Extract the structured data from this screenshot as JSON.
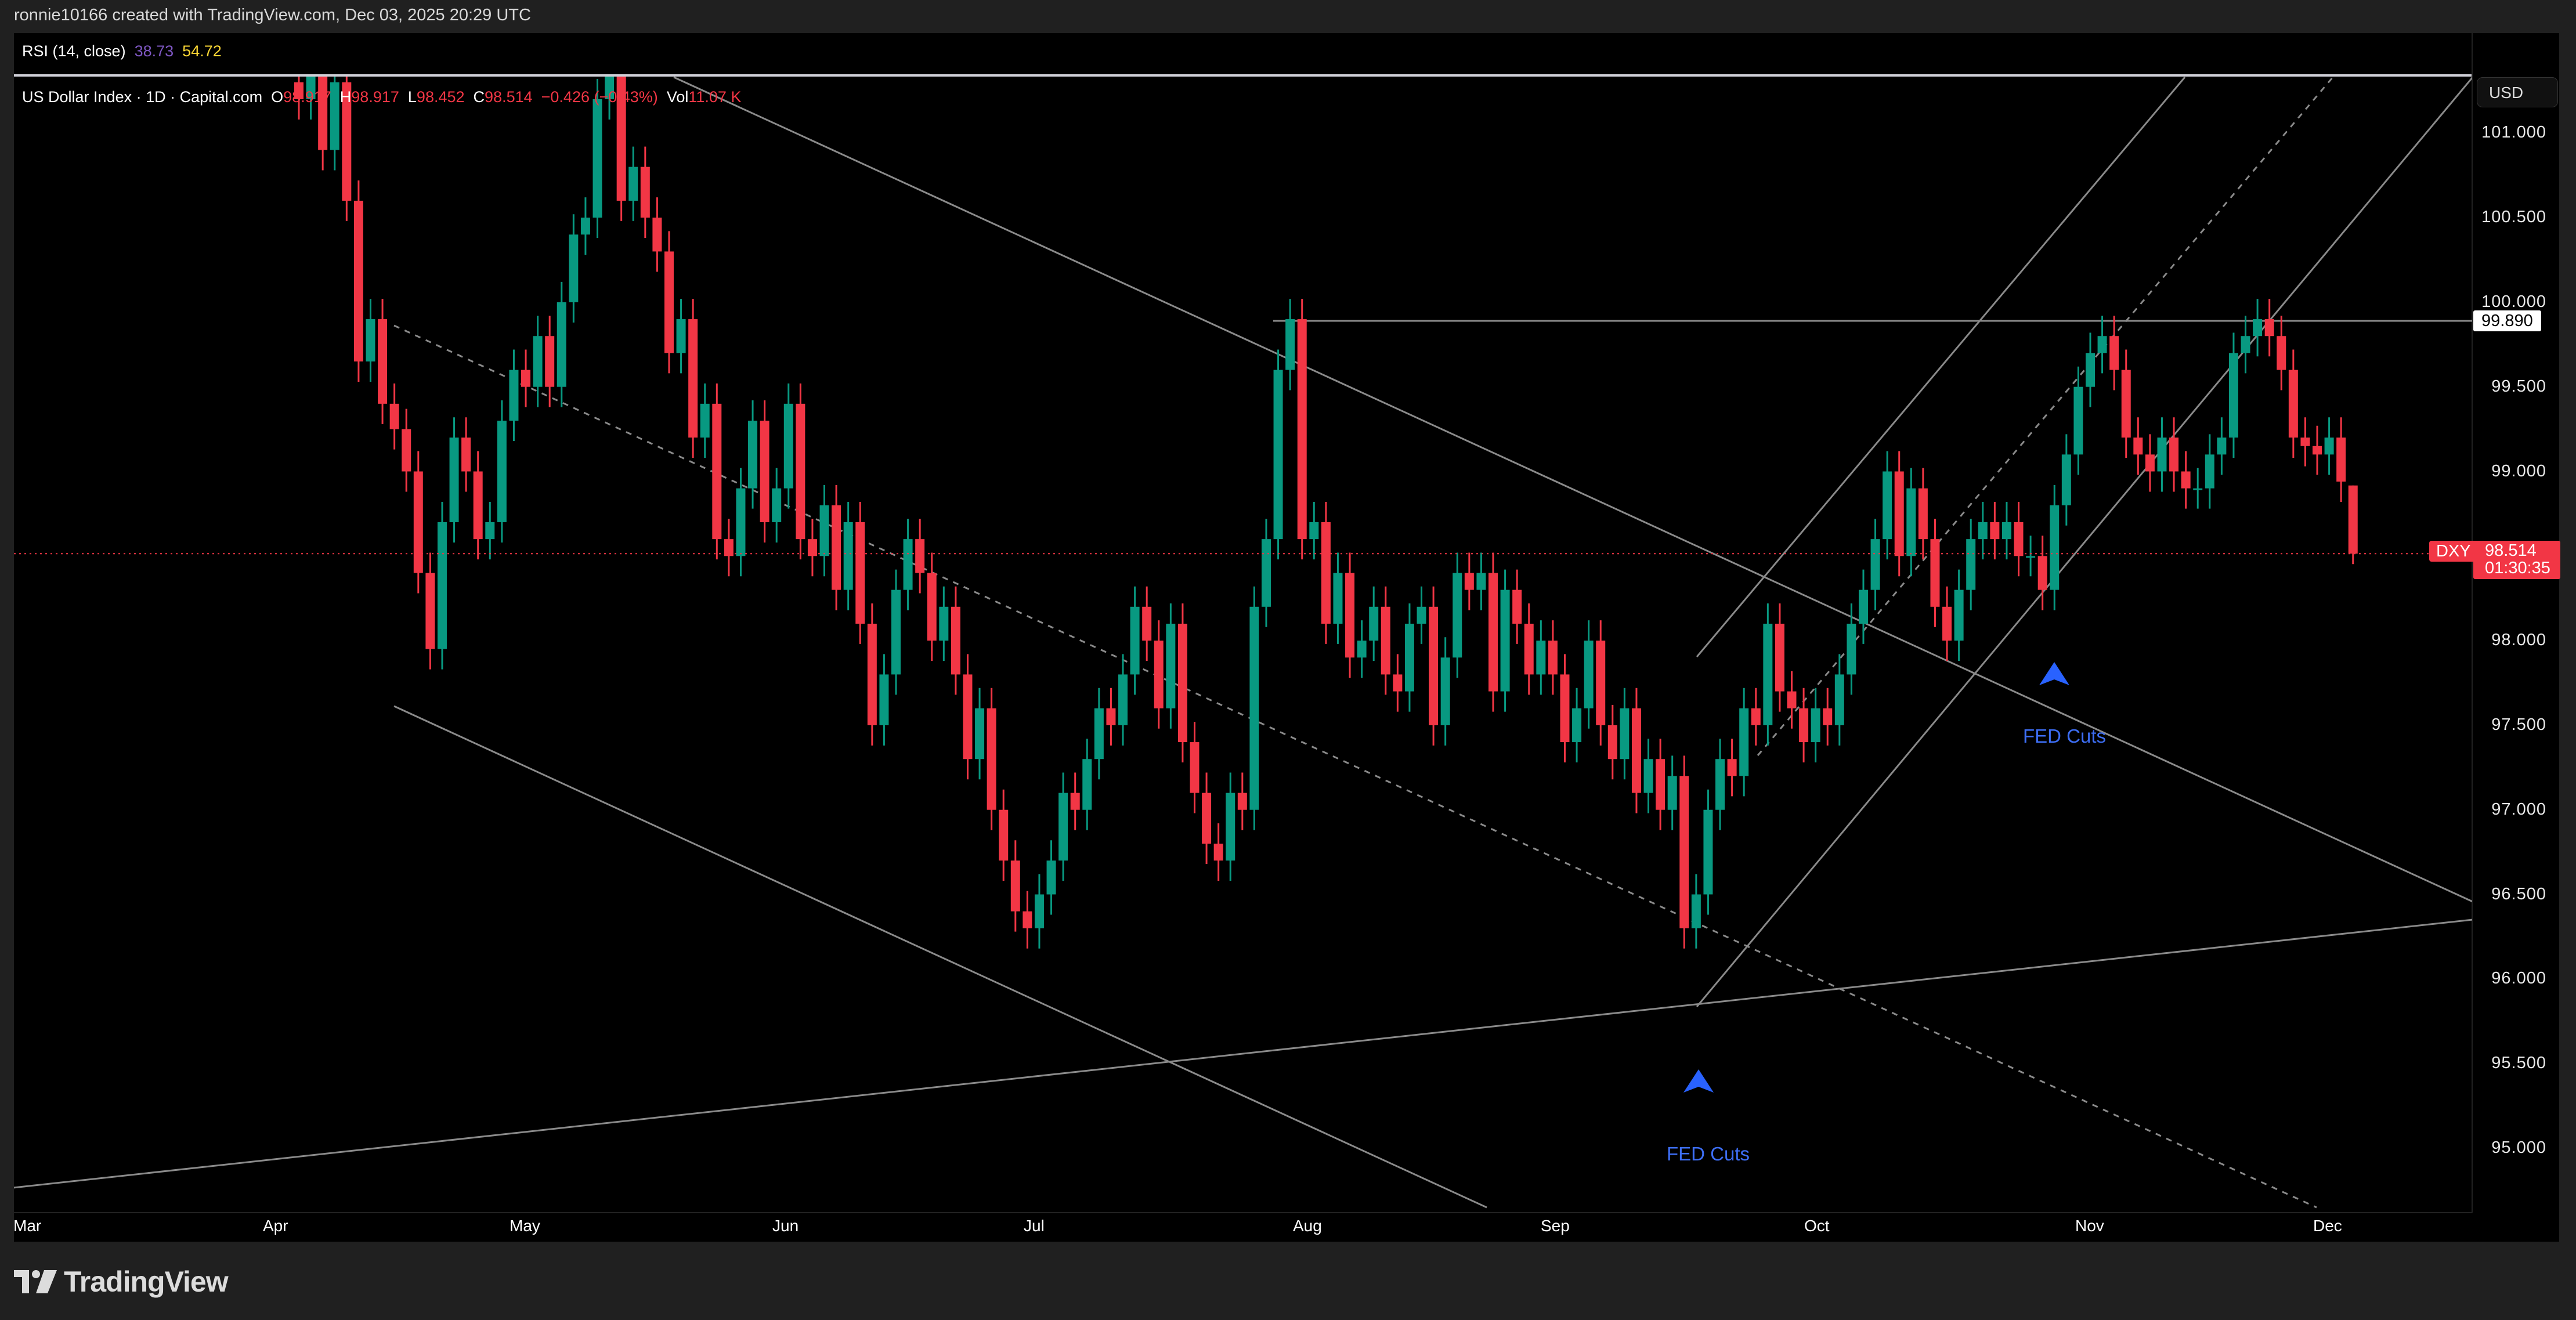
{
  "header": {
    "attribution": "ronnie10166 created with TradingView.com, Dec 03, 2025 20:29 UTC"
  },
  "rsi": {
    "label": "RSI (14, close)",
    "value1": "38.73",
    "value2": "54.72"
  },
  "legend": {
    "symbol": "US Dollar Index · 1D · Capital.com",
    "o_label": "O",
    "o": "98.917",
    "h_label": "H",
    "h": "98.917",
    "l_label": "L",
    "l": "98.452",
    "c_label": "C",
    "c": "98.514",
    "change": "−0.426 (−0.43%)",
    "vol_label": "Vol",
    "vol": "11.07 K"
  },
  "price_axis": {
    "currency": "USD",
    "ticks": [
      "101.000",
      "100.500",
      "100.000",
      "99.500",
      "99.000",
      "98.500",
      "98.000",
      "97.500",
      "97.000",
      "96.500",
      "96.000",
      "95.500",
      "95.000"
    ],
    "level_label": "99.890",
    "symbol_tag": "DXY",
    "last_price": "98.514",
    "countdown": "01:30:35"
  },
  "annotations": [
    {
      "text": "FED Cuts"
    },
    {
      "text": "FED Cuts"
    }
  ],
  "footer": {
    "brand": "TradingView"
  },
  "colors": {
    "up": "#089981",
    "down": "#f23645",
    "background": "#000000",
    "drawing": "#8a8a8a",
    "marker": "#2962ff"
  },
  "chart_data": {
    "type": "candlestick",
    "title": "US Dollar Index · 1D · Capital.com",
    "x_ticks": [
      "Mar",
      "Apr",
      "May",
      "Jun",
      "Jul",
      "Aug",
      "Sep",
      "Oct",
      "Nov",
      "Dec"
    ],
    "ylim": [
      94.6,
      101.35
    ],
    "grid": false,
    "last_candle": {
      "open": 98.917,
      "high": 98.917,
      "low": 98.452,
      "close": 98.514
    },
    "horizontal_level": 99.89,
    "close": [
      101.2,
      101.4,
      100.9,
      101.3,
      100.6,
      99.65,
      99.9,
      99.4,
      99.25,
      99.0,
      98.4,
      97.95,
      98.7,
      99.2,
      99.0,
      98.6,
      98.7,
      99.3,
      99.6,
      99.5,
      99.8,
      99.5,
      100.0,
      100.4,
      100.5,
      101.2,
      101.6,
      100.6,
      100.8,
      100.5,
      100.3,
      99.7,
      99.9,
      99.2,
      99.4,
      98.6,
      98.5,
      98.9,
      99.3,
      98.7,
      98.9,
      99.4,
      98.6,
      98.5,
      98.8,
      98.3,
      98.7,
      98.1,
      97.5,
      97.8,
      98.3,
      98.6,
      98.4,
      98.0,
      98.2,
      97.8,
      97.3,
      97.6,
      97.0,
      96.7,
      96.4,
      96.3,
      96.5,
      96.7,
      97.1,
      97.0,
      97.3,
      97.6,
      97.5,
      97.8,
      98.2,
      98.0,
      97.6,
      98.1,
      97.4,
      97.1,
      96.8,
      96.7,
      97.1,
      97.0,
      98.2,
      98.6,
      99.6,
      99.9,
      98.6,
      98.7,
      98.1,
      98.4,
      97.9,
      98.0,
      98.2,
      97.8,
      97.7,
      98.1,
      98.2,
      97.5,
      97.9,
      98.4,
      98.3,
      98.4,
      97.7,
      98.3,
      98.1,
      97.8,
      98.0,
      97.8,
      97.4,
      97.6,
      98.0,
      97.5,
      97.3,
      97.6,
      97.1,
      97.3,
      97.0,
      97.2,
      96.3,
      96.5,
      97.0,
      97.3,
      97.2,
      97.6,
      97.5,
      98.1,
      97.7,
      97.6,
      97.4,
      97.6,
      97.5,
      97.8,
      98.1,
      98.3,
      98.6,
      99.0,
      98.5,
      98.9,
      98.6,
      98.2,
      98.0,
      98.3,
      98.6,
      98.7,
      98.6,
      98.7,
      98.5,
      98.5,
      98.3,
      98.8,
      99.1,
      99.5,
      99.7,
      99.8,
      99.6,
      99.2,
      99.1,
      99.0,
      99.2,
      99.0,
      98.9,
      98.9,
      99.1,
      99.2,
      99.7,
      99.8,
      99.9,
      99.8,
      99.6,
      99.2,
      99.15,
      99.1,
      99.2,
      98.94,
      98.514
    ]
  }
}
